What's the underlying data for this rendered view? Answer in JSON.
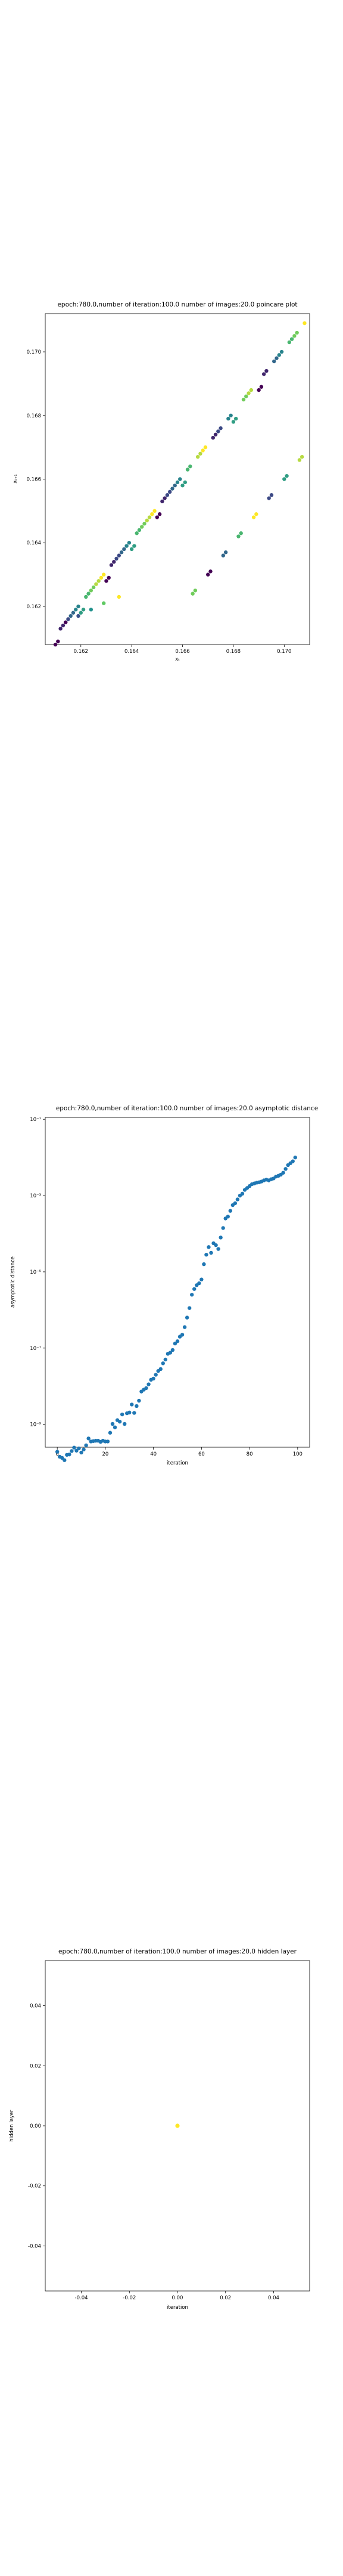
{
  "chart_data": [
    {
      "type": "scatter",
      "title": "epoch:780.0,number of iteration:100.0 number of images:20.0 poincare plot",
      "xlabel": "xₜ",
      "ylabel": "xₜ₊₁",
      "xlim": [
        0.1606,
        0.171
      ],
      "ylim": [
        0.1608,
        0.1712
      ],
      "xticks": [
        0.162,
        0.164,
        0.166,
        0.168,
        0.17
      ],
      "yticks": [
        0.162,
        0.164,
        0.166,
        0.168,
        0.17
      ],
      "colormap": "viridis",
      "colors": {
        "low": "#440154",
        "high": "#fde725"
      },
      "trajectories": [
        {
          "x": [
            0.161,
            0.1612,
            0.1614,
            0.1616,
            0.1618,
            0.162,
            0.1622,
            0.1624,
            0.1626,
            0.1628,
            0.163,
            0.1632,
            0.1634,
            0.1636,
            0.1638,
            0.164,
            0.1642,
            0.1644,
            0.1646,
            0.1648,
            0.165,
            0.1652,
            0.1654,
            0.1656,
            0.1658,
            0.166,
            0.1662,
            0.1664,
            0.1666,
            0.1668,
            0.167,
            0.1672,
            0.1674,
            0.1676,
            0.1678,
            0.168,
            0.1682,
            0.1684,
            0.1686,
            0.1688,
            0.169,
            0.1692,
            0.1694,
            0.1696,
            0.1698,
            0.17,
            0.1702,
            0.1704,
            0.1706,
            0.1708
          ]
        },
        {
          "x": [
            0.1611,
            0.1613,
            0.1615,
            0.1617,
            0.1619,
            0.1621,
            0.1623,
            0.1625,
            0.1627,
            0.1629,
            0.1631,
            0.1633,
            0.1635,
            0.1637,
            0.1639,
            0.1641,
            0.1643,
            0.1645,
            0.1647,
            0.1649,
            0.1651,
            0.1653,
            0.1655,
            0.1657,
            0.1659,
            0.1661,
            0.1663,
            0.1665,
            0.1667,
            0.1669,
            0.1671,
            0.1673,
            0.1675,
            0.1677,
            0.1679,
            0.1681,
            0.1683,
            0.1685,
            0.1687,
            0.1689,
            0.1691,
            0.1693,
            0.1695,
            0.1697,
            0.1699,
            0.1701,
            0.1703,
            0.1705,
            0.1707
          ]
        }
      ]
    },
    {
      "type": "scatter",
      "title": "epoch:780.0,number of iteration:100.0  number of images:20.0 asymptotic distance",
      "xlabel": "iteration",
      "ylabel": "asymptotic distance",
      "yscale": "log",
      "xlim": [
        -5,
        105
      ],
      "ylim_exp": [
        -9.6,
        -0.95
      ],
      "xticks": [
        0,
        20,
        40,
        60,
        80,
        100
      ],
      "yticks_exp": [
        -9,
        -7,
        -5,
        -3,
        -1
      ],
      "yticks": [
        "10⁻⁹",
        "10⁻⁷",
        "10⁻⁵",
        "10⁻³",
        "10⁻¹"
      ],
      "color": "#1f77b4",
      "x": [
        0,
        1,
        2,
        3,
        4,
        5,
        6,
        7,
        8,
        9,
        10,
        11,
        12,
        13,
        14,
        15,
        16,
        17,
        18,
        19,
        20,
        21,
        22,
        23,
        24,
        25,
        26,
        27,
        28,
        29,
        30,
        31,
        32,
        33,
        34,
        35,
        36,
        37,
        38,
        39,
        40,
        41,
        42,
        43,
        44,
        45,
        46,
        47,
        48,
        49,
        50,
        51,
        52,
        53,
        54,
        55,
        56,
        57,
        58,
        59,
        60,
        61,
        62,
        63,
        64,
        65,
        66,
        67,
        68,
        69,
        70,
        71,
        72,
        73,
        74,
        75,
        76,
        77,
        78,
        79,
        80,
        81,
        82,
        83,
        84,
        85,
        86,
        87,
        88,
        89,
        90,
        91,
        92,
        93,
        94,
        95,
        96,
        97,
        98,
        99
      ],
      "y_exp": [
        -9.72,
        -9.85,
        -9.88,
        -9.94,
        -9.8,
        -9.79,
        -9.7,
        -9.61,
        -9.69,
        -9.63,
        -9.74,
        -9.66,
        -9.55,
        -9.37,
        -9.45,
        -9.44,
        -9.43,
        -9.43,
        -9.46,
        -9.43,
        -9.45,
        -9.45,
        -9.22,
        -8.99,
        -9.08,
        -8.89,
        -8.93,
        -8.74,
        -8.99,
        -8.71,
        -8.69,
        -8.48,
        -8.7,
        -8.52,
        -8.38,
        -8.14,
        -8.09,
        -8.05,
        -7.95,
        -7.83,
        -7.8,
        -7.7,
        -7.6,
        -7.55,
        -7.4,
        -7.3,
        -7.15,
        -7.12,
        -7.05,
        -6.88,
        -6.82,
        -6.7,
        -6.65,
        -6.45,
        -6.2,
        -5.95,
        -5.6,
        -5.45,
        -5.35,
        -5.3,
        -5.2,
        -4.8,
        -4.55,
        -4.35,
        -4.5,
        -4.25,
        -4.3,
        -4.4,
        -4.1,
        -3.85,
        -3.6,
        -3.55,
        -3.4,
        -3.25,
        -3.2,
        -3.1,
        -3.0,
        -2.95,
        -2.85,
        -2.8,
        -2.75,
        -2.7,
        -2.68,
        -2.66,
        -2.65,
        -2.63,
        -2.6,
        -2.58,
        -2.6,
        -2.57,
        -2.55,
        -2.5,
        -2.48,
        -2.45,
        -2.4,
        -2.3,
        -2.2,
        -2.15,
        -2.1,
        -2.0
      ]
    },
    {
      "type": "scatter",
      "title": "epoch:780.0,number of iteration:100.0  number of images:20.0 hidden layer",
      "xlabel": "iteration",
      "ylabel": "hidden layer",
      "xlim": [
        -0.055,
        0.055
      ],
      "ylim": [
        -0.055,
        0.055
      ],
      "xticks": [
        -0.04,
        -0.02,
        0.0,
        0.02,
        0.04
      ],
      "yticks": [
        -0.04,
        -0.02,
        0.0,
        0.02,
        0.04
      ],
      "x": [
        0.0
      ],
      "y": [
        0.0
      ],
      "color": "#fde725"
    }
  ]
}
